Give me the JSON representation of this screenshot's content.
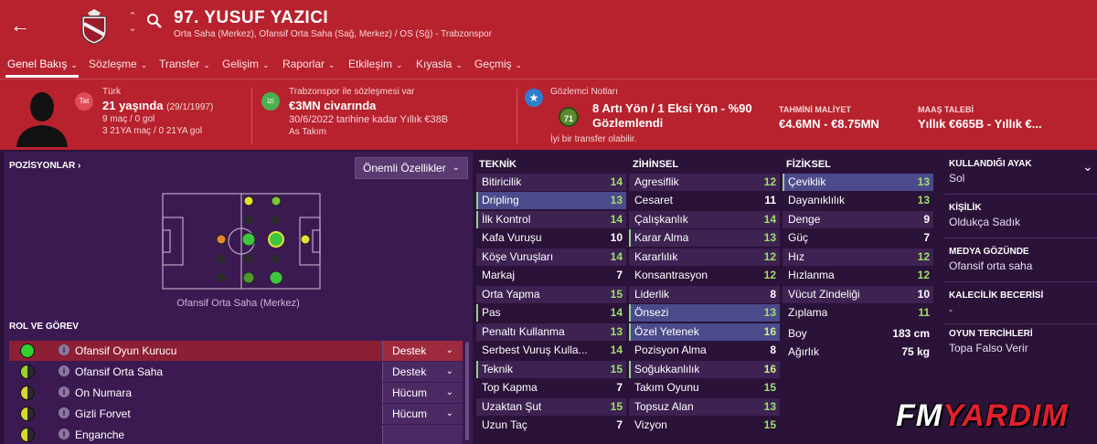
{
  "header": {
    "player_name": "97. YUSUF YAZICI",
    "positions": "Orta Saha (Merkez), Ofansif Orta Saha (Sağ, Merkez) / OS (Sğ) - Trabzonspor"
  },
  "nav": [
    {
      "label": "Genel Bakış"
    },
    {
      "label": "Sözleşme"
    },
    {
      "label": "Transfer"
    },
    {
      "label": "Gelişim"
    },
    {
      "label": "Raporlar"
    },
    {
      "label": "Etkileşim"
    },
    {
      "label": "Kıyasla"
    },
    {
      "label": "Geçmiş"
    }
  ],
  "info": {
    "nationality_badge": "Tat",
    "nationality": "Türk",
    "age": "21 yaşında",
    "birth": "(29/1/1997)",
    "career_stats": "9 maç / 0 gol",
    "u21_stats": "3 21YA maç / 0 21YA gol",
    "club_badge": "izi",
    "contract_label": "Trabzonspor ile sözleşmesi var",
    "value": "€3MN civarında",
    "contract_detail": "30/6/2022 tarihine kadar Yıllık €38B",
    "squad_status": "As Takım",
    "scout_label": "Gözlemci Notları",
    "scout_rating": "71",
    "scout_summary": "8 Artı Yön / 1 Eksi Yön - %90",
    "scout_status": "Gözlemlendi",
    "scout_verdict": "İyi bir transfer olabilir.",
    "est_cost_label": "TAHMİNİ MALİYET",
    "est_cost": "€4.6MN - €8.75MN",
    "wage_label": "MAAŞ TALEBİ",
    "wage": "Yıllık €665B - Yıllık €..."
  },
  "positions_panel": {
    "title": "POZİSYONLAR ›",
    "dropdown": "Önemli Özellikler",
    "caption": "Ofansif Orta Saha (Merkez)"
  },
  "roles": {
    "title": "ROL VE GÖREV",
    "items": [
      {
        "name": "Ofansif Oyun Kurucu",
        "duty": "Destek",
        "color": "#2ed12e"
      },
      {
        "name": "Ofansif Orta Saha",
        "duty": "Destek",
        "color": "#9bd12e"
      },
      {
        "name": "On Numara",
        "duty": "Hücum",
        "color": "#d8d82e"
      },
      {
        "name": "Gizli Forvet",
        "duty": "Hücum",
        "color": "#d8d82e"
      },
      {
        "name": "Enganche",
        "duty": "",
        "color": "#d8d82e"
      }
    ]
  },
  "technical": {
    "title": "TEKNİK",
    "attrs": [
      {
        "name": "Bitiricilik",
        "value": "14"
      },
      {
        "name": "Dripling",
        "value": "13"
      },
      {
        "name": "İlk Kontrol",
        "value": "14"
      },
      {
        "name": "Kafa Vuruşu",
        "value": "10"
      },
      {
        "name": "Köşe Vuruşları",
        "value": "14"
      },
      {
        "name": "Markaj",
        "value": "7"
      },
      {
        "name": "Orta Yapma",
        "value": "15"
      },
      {
        "name": "Pas",
        "value": "14"
      },
      {
        "name": "Penaltı Kullanma",
        "value": "13"
      },
      {
        "name": "Serbest Vuruş Kulla...",
        "value": "14"
      },
      {
        "name": "Teknik",
        "value": "15"
      },
      {
        "name": "Top Kapma",
        "value": "7"
      },
      {
        "name": "Uzaktan Şut",
        "value": "15"
      },
      {
        "name": "Uzun Taç",
        "value": "7"
      }
    ]
  },
  "mental": {
    "title": "ZİHİNSEL",
    "attrs": [
      {
        "name": "Agresiflik",
        "value": "12"
      },
      {
        "name": "Cesaret",
        "value": "11"
      },
      {
        "name": "Çalışkanlık",
        "value": "14"
      },
      {
        "name": "Karar Alma",
        "value": "13"
      },
      {
        "name": "Kararlılık",
        "value": "12"
      },
      {
        "name": "Konsantrasyon",
        "value": "12"
      },
      {
        "name": "Liderlik",
        "value": "8"
      },
      {
        "name": "Önsezi",
        "value": "13"
      },
      {
        "name": "Özel Yetenek",
        "value": "16"
      },
      {
        "name": "Pozisyon Alma",
        "value": "8"
      },
      {
        "name": "Soğukkanlılık",
        "value": "16"
      },
      {
        "name": "Takım Oyunu",
        "value": "15"
      },
      {
        "name": "Topsuz Alan",
        "value": "13"
      },
      {
        "name": "Vizyon",
        "value": "15"
      }
    ]
  },
  "physical": {
    "title": "FİZİKSEL",
    "attrs": [
      {
        "name": "Çeviklik",
        "value": "13"
      },
      {
        "name": "Dayanıklılık",
        "value": "13"
      },
      {
        "name": "Denge",
        "value": "9"
      },
      {
        "name": "Güç",
        "value": "7"
      },
      {
        "name": "Hız",
        "value": "12"
      },
      {
        "name": "Hızlanma",
        "value": "12"
      },
      {
        "name": "Vücut Zindeliği",
        "value": "10"
      },
      {
        "name": "Zıplama",
        "value": "11"
      }
    ],
    "height_label": "Boy",
    "height": "183 cm",
    "weight_label": "Ağırlık",
    "weight": "75 kg"
  },
  "right": {
    "foot_label": "KULLANDIĞI AYAK",
    "foot": "Sol",
    "personality_label": "KİŞİLİK",
    "personality": "Oldukça Sadık",
    "media_label": "MEDYA GÖZÜNDE",
    "media": "Ofansif orta saha",
    "gk_label": "KALECİLİK BECERİSİ",
    "gk": "-",
    "pref_label": "OYUN TERCİHLERİ",
    "pref": "Topa Falso Verir"
  },
  "watermark": {
    "part1": "FM",
    "part2": "YARDIM"
  }
}
